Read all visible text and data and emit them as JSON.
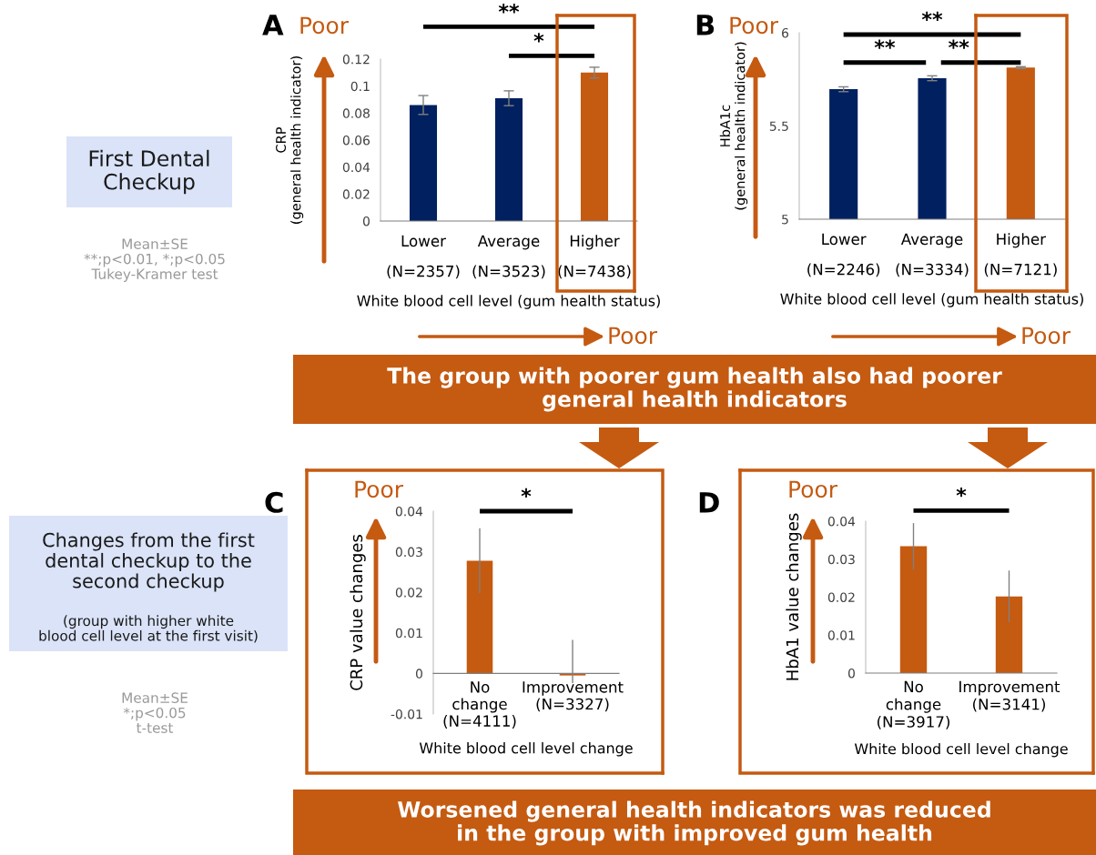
{
  "chart_data": [
    {
      "type": "bar",
      "title": "A",
      "ylabel": "CRP\n(general health indicator)",
      "xlabel": "White blood cell level (gum health status)",
      "categories": [
        "Lower\n(N=2357)",
        "Average\n(N=3523)",
        "Higher\n(N=7438)"
      ],
      "values": [
        0.086,
        0.091,
        0.11
      ],
      "colors": [
        "#002060",
        "#002060",
        "#c55a11"
      ],
      "errors": [
        0.007,
        0.0055,
        0.004
      ],
      "ylim": [
        0,
        0.12
      ],
      "yticks": [
        0,
        0.02,
        0.04,
        0.06,
        0.08,
        {
          "value": 0.1,
          "label": "0.1"
        },
        0.12
      ],
      "annotations": [
        "Poor",
        "**",
        "*",
        "Poor"
      ]
    },
    {
      "type": "bar",
      "title": "B",
      "ylabel": "HbA1c\n(general health indicator)",
      "xlabel": "White blood cell level (gum health status)",
      "categories": [
        "Lower\n(N=2246)",
        "Average\n(N=3334)",
        "Higher\n(N=7121)"
      ],
      "values": [
        5.697,
        5.756,
        5.813
      ],
      "colors": [
        "#002060",
        "#002060",
        "#c55a11"
      ],
      "errors": [
        0.013,
        0.013,
        0.005
      ],
      "ylim": [
        5,
        6
      ],
      "yticks": [
        5,
        5.5,
        6
      ],
      "annotations": [
        "Poor",
        "**",
        "**",
        "**",
        "Poor"
      ]
    },
    {
      "type": "bar",
      "title": "C",
      "ylabel": "CRP value changes",
      "xlabel": "White blood cell level change",
      "categories": [
        "No\nchange\n(N=4111)",
        "Improvement\n(N=3327)"
      ],
      "values": [
        0.0278,
        -0.0005
      ],
      "colors": [
        "#c55a11",
        "#c55a11"
      ],
      "errors": [
        0.008,
        [
          -0.0024,
          0.0083
        ]
      ],
      "ylim": [
        -0.01,
        0.04
      ],
      "yticks": [
        -0.01,
        0,
        0.01,
        0.02,
        0.03,
        0.04
      ],
      "annotations": [
        "Poor",
        "*"
      ]
    },
    {
      "type": "bar",
      "title": "D",
      "ylabel": "HbA1 value changes",
      "xlabel": "White blood cell level change",
      "categories": [
        "No\nchange\n(N=3917)",
        "Improvement\n(N=3141)"
      ],
      "values": [
        0.0334,
        0.0202
      ],
      "colors": [
        "#c55a11",
        "#c55a11"
      ],
      "errors": [
        0.0061,
        0.0068
      ],
      "ylim": [
        0,
        0.04
      ],
      "yticks": [
        0,
        0.01,
        0.02,
        0.03,
        0.04
      ],
      "annotations": [
        "Poor",
        "*"
      ]
    },
    {
      "type": "other",
      "annotations": [
        "First Dental\nCheckup",
        "Mean±SE\n**;p<0.01, *;p<0.05\nTukey-Kramer test",
        "The group with poorer gum health also had poorer\ngeneral health indicators",
        "Changes from the first\ndental checkup to the\nsecond checkup",
        "(group with higher white\nblood cell level at the first visit)",
        "Mean±SE\n*;p<0.05\nt-test",
        "Worsened general health indicators was reduced\nin the group with improved gum health"
      ]
    }
  ]
}
